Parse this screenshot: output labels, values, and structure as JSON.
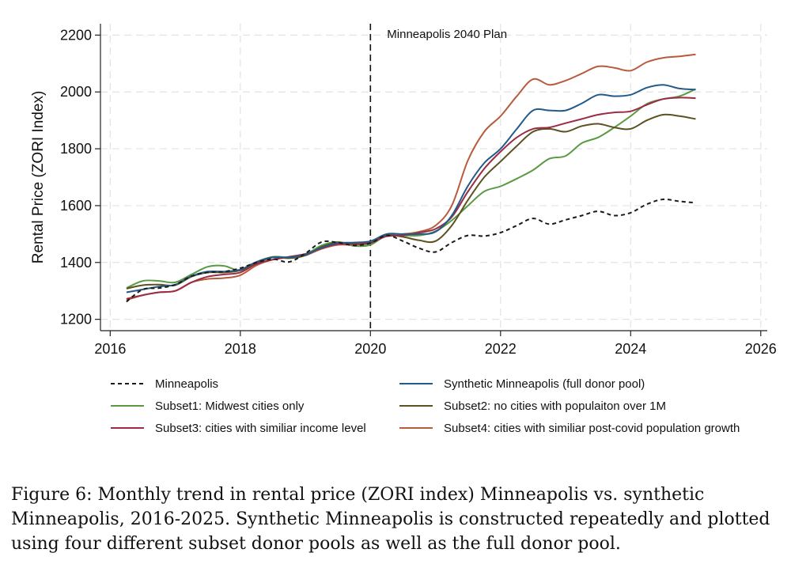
{
  "chart_data": {
    "type": "line",
    "title": "",
    "xlabel": "",
    "ylabel": "Rental Price (ZORI Index)",
    "xlim": [
      2015.85,
      2026.1
    ],
    "ylim": [
      1160,
      2240
    ],
    "xticks": [
      2016,
      2018,
      2020,
      2022,
      2024,
      2026
    ],
    "xtick_labels": [
      "2016",
      "2018",
      "2020",
      "2022",
      "2024",
      "2026"
    ],
    "yticks": [
      1200,
      1400,
      1600,
      1800,
      2000,
      2200
    ],
    "ytick_labels": [
      "1200",
      "1400",
      "1600",
      "1800",
      "2000",
      "2200"
    ],
    "grid": true,
    "treatment": {
      "x": 2020,
      "label": "Minneapolis 2040 Plan"
    },
    "series": [
      {
        "name": "Minneapolis",
        "color": "#1a1a1a",
        "dash": true,
        "x": [
          2016.25,
          2016.5,
          2016.75,
          2017,
          2017.25,
          2017.5,
          2017.75,
          2018,
          2018.25,
          2018.5,
          2018.75,
          2019,
          2019.25,
          2019.5,
          2019.75,
          2020,
          2020.25,
          2020.5,
          2020.75,
          2021,
          2021.25,
          2021.5,
          2021.75,
          2022,
          2022.25,
          2022.5,
          2022.75,
          2023,
          2023.25,
          2023.5,
          2023.75,
          2024,
          2024.25,
          2024.5,
          2024.75,
          2025
        ],
        "values": [
          1262,
          1305,
          1310,
          1322,
          1352,
          1365,
          1368,
          1380,
          1400,
          1412,
          1402,
          1432,
          1472,
          1470,
          1460,
          1468,
          1495,
          1475,
          1450,
          1437,
          1470,
          1495,
          1493,
          1505,
          1530,
          1555,
          1535,
          1550,
          1565,
          1580,
          1565,
          1575,
          1605,
          1622,
          1615,
          1610
        ]
      },
      {
        "name": "Synthetic Minneapolis (full donor pool)",
        "color": "#245a8a",
        "dash": false,
        "x": [
          2016.25,
          2016.5,
          2016.75,
          2017,
          2017.25,
          2017.5,
          2017.75,
          2018,
          2018.25,
          2018.5,
          2018.75,
          2019,
          2019.25,
          2019.5,
          2019.75,
          2020,
          2020.25,
          2020.5,
          2020.75,
          2021,
          2021.25,
          2021.5,
          2021.75,
          2022,
          2022.25,
          2022.5,
          2022.75,
          2023,
          2023.25,
          2023.5,
          2023.75,
          2024,
          2024.25,
          2024.5,
          2024.75,
          2025
        ],
        "values": [
          1295,
          1305,
          1315,
          1322,
          1352,
          1368,
          1368,
          1375,
          1402,
          1418,
          1418,
          1428,
          1452,
          1468,
          1470,
          1475,
          1500,
          1500,
          1500,
          1508,
          1565,
          1670,
          1750,
          1800,
          1870,
          1935,
          1935,
          1935,
          1960,
          1990,
          1985,
          1990,
          2015,
          2025,
          2012,
          2008
        ]
      },
      {
        "name": "Subset1: Midwest cities only",
        "color": "#5a9a45",
        "dash": false,
        "x": [
          2016.25,
          2016.5,
          2016.75,
          2017,
          2017.25,
          2017.5,
          2017.75,
          2018,
          2018.25,
          2018.5,
          2018.75,
          2019,
          2019.25,
          2019.5,
          2019.75,
          2020,
          2020.25,
          2020.5,
          2020.75,
          2021,
          2021.25,
          2021.5,
          2021.75,
          2022,
          2022.25,
          2022.5,
          2022.75,
          2023,
          2023.25,
          2023.5,
          2023.75,
          2024,
          2024.25,
          2024.5,
          2024.75,
          2025
        ],
        "values": [
          1310,
          1335,
          1335,
          1330,
          1358,
          1385,
          1388,
          1372,
          1402,
          1420,
          1418,
          1428,
          1460,
          1472,
          1458,
          1462,
          1495,
          1495,
          1495,
          1510,
          1548,
          1600,
          1650,
          1668,
          1695,
          1725,
          1765,
          1775,
          1820,
          1840,
          1875,
          1915,
          1958,
          1975,
          1985,
          2010
        ]
      },
      {
        "name": "Subset2: no cities with populaiton over 1M",
        "color": "#5c5220",
        "dash": false,
        "x": [
          2016.25,
          2016.5,
          2016.75,
          2017,
          2017.25,
          2017.5,
          2017.75,
          2018,
          2018.25,
          2018.5,
          2018.75,
          2019,
          2019.25,
          2019.5,
          2019.75,
          2020,
          2020.25,
          2020.5,
          2020.75,
          2021,
          2021.25,
          2021.5,
          2021.75,
          2022,
          2022.25,
          2022.5,
          2022.75,
          2023,
          2023.25,
          2023.5,
          2023.75,
          2024,
          2024.25,
          2024.5,
          2024.75,
          2025
        ],
        "values": [
          1308,
          1320,
          1322,
          1320,
          1350,
          1365,
          1365,
          1372,
          1398,
          1418,
          1415,
          1425,
          1455,
          1470,
          1465,
          1468,
          1495,
          1490,
          1478,
          1475,
          1530,
          1620,
          1700,
          1755,
          1810,
          1860,
          1870,
          1860,
          1880,
          1888,
          1875,
          1870,
          1900,
          1920,
          1915,
          1905
        ]
      },
      {
        "name": "Subset3: cities with similiar income level",
        "color": "#9b2c45",
        "dash": false,
        "x": [
          2016.25,
          2016.5,
          2016.75,
          2017,
          2017.25,
          2017.5,
          2017.75,
          2018,
          2018.25,
          2018.5,
          2018.75,
          2019,
          2019.25,
          2019.5,
          2019.75,
          2020,
          2020.25,
          2020.5,
          2020.75,
          2021,
          2021.25,
          2021.5,
          2021.75,
          2022,
          2022.25,
          2022.5,
          2022.75,
          2023,
          2023.25,
          2023.5,
          2023.75,
          2024,
          2024.25,
          2024.5,
          2024.75,
          2025
        ],
        "values": [
          1272,
          1285,
          1295,
          1300,
          1330,
          1350,
          1358,
          1365,
          1395,
          1410,
          1420,
          1430,
          1450,
          1465,
          1465,
          1470,
          1492,
          1495,
          1505,
          1518,
          1560,
          1650,
          1730,
          1790,
          1840,
          1870,
          1875,
          1890,
          1905,
          1920,
          1928,
          1932,
          1955,
          1975,
          1980,
          1978
        ]
      },
      {
        "name": "Subset4: cities with similiar post-covid population growth",
        "color": "#b85a3c",
        "dash": false,
        "x": [
          2016.25,
          2016.5,
          2016.75,
          2017,
          2017.25,
          2017.5,
          2017.75,
          2018,
          2018.25,
          2018.5,
          2018.75,
          2019,
          2019.25,
          2019.5,
          2019.75,
          2020,
          2020.25,
          2020.5,
          2020.75,
          2021,
          2021.25,
          2021.5,
          2021.75,
          2022,
          2022.25,
          2022.5,
          2022.75,
          2023,
          2023.25,
          2023.5,
          2023.75,
          2024,
          2024.25,
          2024.5,
          2024.75,
          2025
        ],
        "values": [
          1268,
          1285,
          1295,
          1300,
          1330,
          1342,
          1345,
          1355,
          1390,
          1410,
          1418,
          1425,
          1448,
          1462,
          1462,
          1468,
          1495,
          1500,
          1508,
          1530,
          1600,
          1760,
          1860,
          1915,
          1985,
          2045,
          2025,
          2040,
          2065,
          2090,
          2085,
          2075,
          2105,
          2120,
          2125,
          2132
        ]
      }
    ]
  },
  "caption": "Figure 6:  Monthly trend in rental price (ZORI index) Minneapolis vs.  synthetic Minneapolis, 2016-2025. Synthetic Minneapolis is constructed repeatedly and plotted using four different subset donor pools as well as the full donor pool."
}
